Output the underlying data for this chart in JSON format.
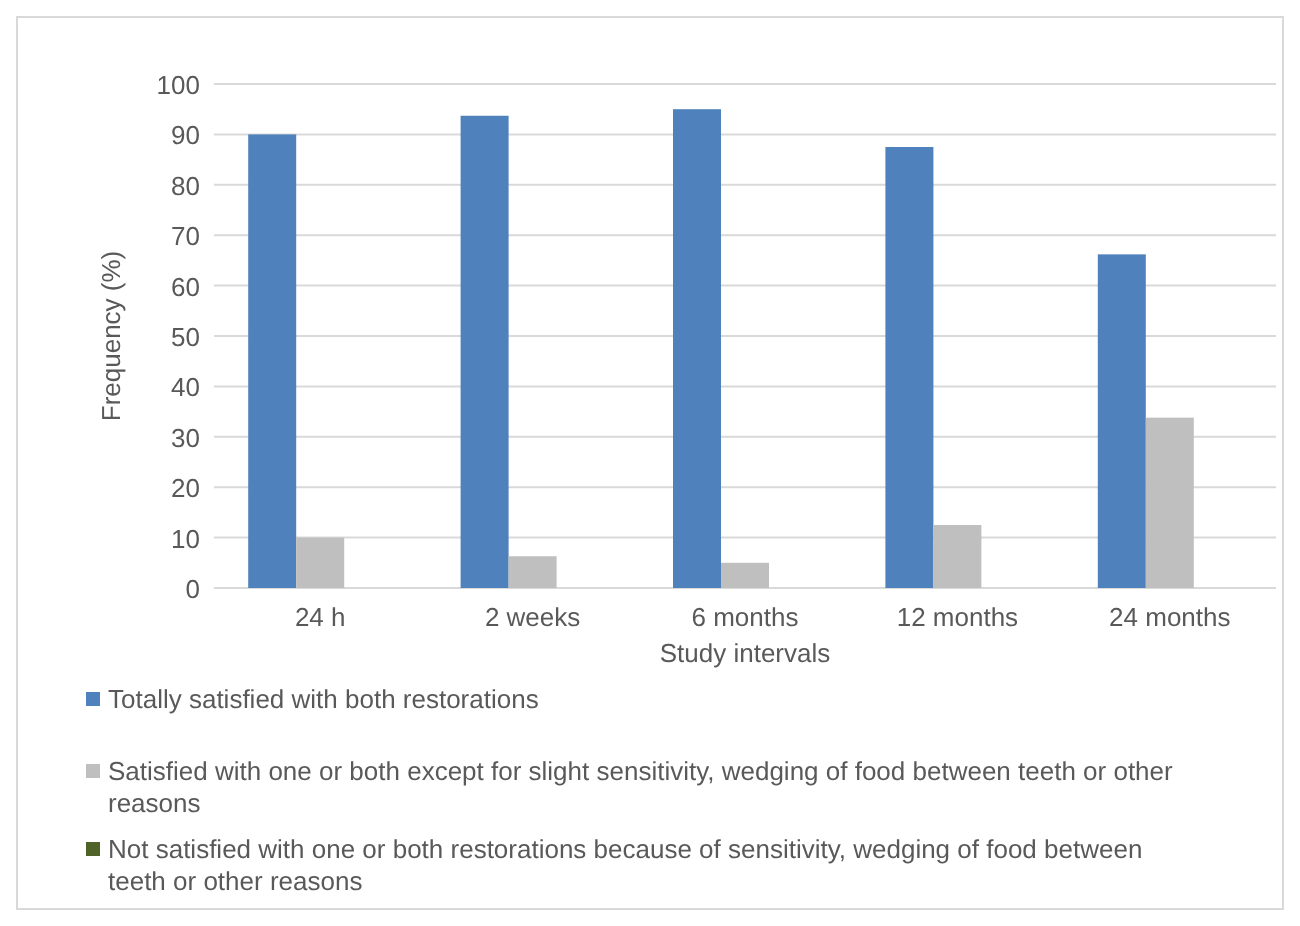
{
  "chart_data": {
    "type": "bar",
    "xlabel": "Study intervals",
    "ylabel": "Frequency (%)",
    "categories": [
      "24 h",
      "2 weeks",
      "6 months",
      "12 months",
      "24 months"
    ],
    "series": [
      {
        "name": "Totally satisfied with both restorations",
        "color": "#4f81bd",
        "values": [
          90,
          93.7,
          95,
          87.5,
          66.2
        ]
      },
      {
        "name": "Satisfied with one or both except for slight sensitivity, wedging of food between teeth or other reasons",
        "color": "#bfbfbf",
        "values": [
          10,
          6.3,
          5,
          12.5,
          33.8
        ]
      },
      {
        "name": "Not satisfied with one or both restorations because of sensitivity, wedging of food between teeth or other reasons",
        "color": "#4f6228",
        "values": [
          0,
          0,
          0,
          0,
          0
        ]
      }
    ],
    "ylim": [
      0,
      100
    ],
    "yticks": [
      0,
      10,
      20,
      30,
      40,
      50,
      60,
      70,
      80,
      90,
      100
    ],
    "grid": "y",
    "legend": "bottom"
  }
}
